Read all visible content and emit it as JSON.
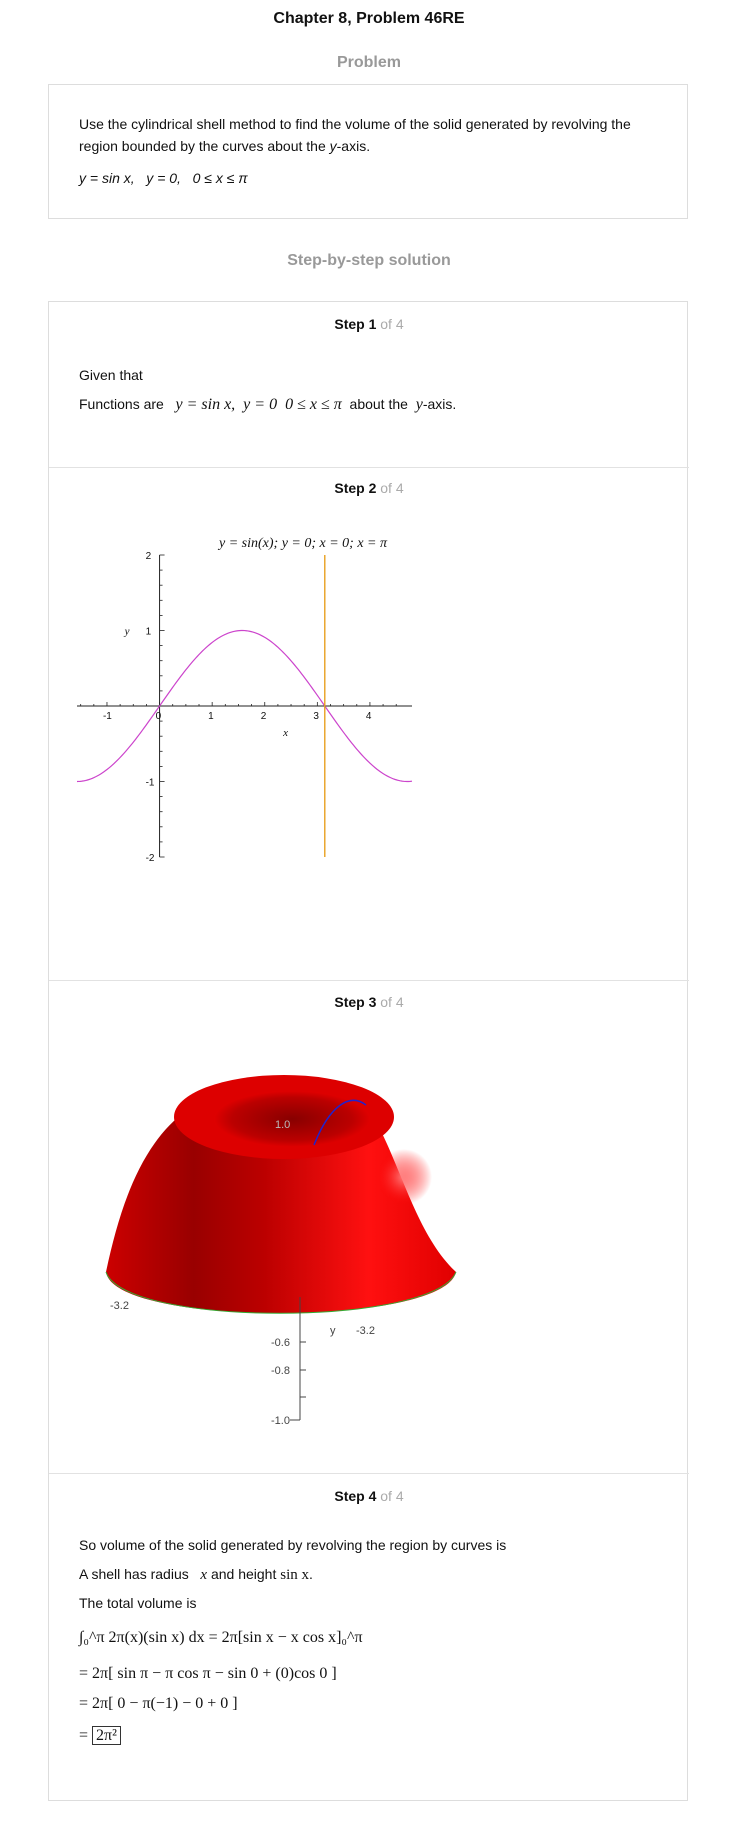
{
  "header": {
    "chapter_title": "Chapter 8, Problem 46RE"
  },
  "problem": {
    "section_title": "Problem",
    "text_part1": "Use the cylindrical shell method to find the volume of the solid generated by revolving the region bounded by the curves about the ",
    "text_italic": "y",
    "text_part2": "-axis.",
    "equations": "y = sin x,   y = 0,   0 ≤ x ≤ π"
  },
  "solution": {
    "section_title": "Step-by-step solution",
    "steps": [
      {
        "label": "Step 1",
        "of": " of 4",
        "given": "Given that",
        "functions_prefix": "Functions are",
        "functions_math": "y = sin x,  y = 0  0 ≤ x ≤ π",
        "functions_suffix": "about the",
        "axis_var": "y",
        "axis_suffix": "-axis."
      },
      {
        "label": "Step 2",
        "of": " of 4"
      },
      {
        "label": "Step 3",
        "of": " of 4"
      },
      {
        "label": "Step 4",
        "of": " of 4",
        "line1": "So volume of the solid generated by revolving the region by curves is",
        "line2_prefix": "A shell has radius",
        "line2_radius": "x",
        "line2_mid": "and height",
        "line2_height": "sin x",
        "line2_end": ".",
        "line3": "The total volume is",
        "eq1": "∫₀^π 2π(x)(sin x) dx = 2π[sin x − x cos x]₀^π",
        "eq2": "= 2π[ sin π − π cos π − sin 0 + (0)cos 0 ]",
        "eq3": "= 2π[ 0 − π(−1) − 0 + 0 ]",
        "eq4_prefix": "=",
        "eq4_box": "2π²"
      }
    ]
  },
  "chart_data": {
    "type": "line",
    "title": "y = sin(x); y = 0; x = 0; x = π",
    "xlabel": "x",
    "ylabel": "y",
    "xlim": [
      -1.57,
      4.8
    ],
    "ylim": [
      -2,
      2
    ],
    "xticks": [
      "-1",
      "0",
      "1",
      "2",
      "3",
      "4"
    ],
    "yticks": [
      "2",
      "1",
      "-1",
      "-2"
    ],
    "series": [
      {
        "name": "sin(x)",
        "color": "#cc44cc",
        "function": "sin(x)"
      },
      {
        "name": "x = π",
        "color": "#e8a020",
        "x_value": 3.14159
      }
    ]
  },
  "surface_plot": {
    "ticks_z": [
      "1.0",
      "-0.6",
      "-0.8",
      "-1.0"
    ],
    "label_y": "y",
    "label_x_neg": "-3.2",
    "label_y_neg": "-3.2",
    "surface_color": "#ee0000",
    "curve_color": "#2222cc"
  }
}
